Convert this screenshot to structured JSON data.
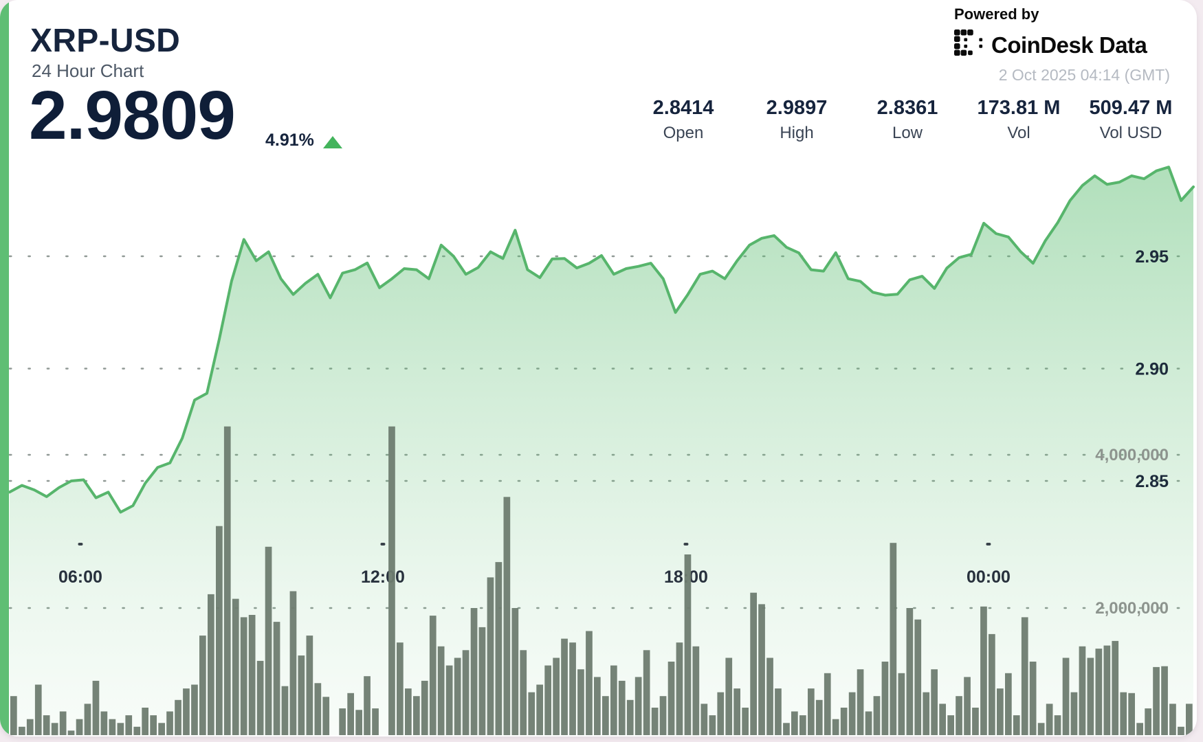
{
  "page": {
    "background": "#f3ebf0",
    "card_background": "#ffffff",
    "accent_color": "#5fbe74"
  },
  "header": {
    "symbol": "XRP-USD",
    "chart_label": "24 Hour Chart",
    "price": "2.9809",
    "change_pct": "4.91%",
    "change_direction": "up",
    "change_triangle_color": "#43b45c",
    "stats": [
      {
        "value": "2.8414",
        "label": "Open"
      },
      {
        "value": "2.9897",
        "label": "High"
      },
      {
        "value": "2.8361",
        "label": "Low"
      },
      {
        "value": "173.81 M",
        "label": "Vol"
      },
      {
        "value": "509.47 M",
        "label": "Vol USD"
      }
    ]
  },
  "attribution": {
    "powered_by": "Powered by",
    "brand": "CoinDesk Data",
    "timestamp": "2 Oct 2025 04:14 (GMT)"
  },
  "chart_data": {
    "type": "area",
    "title": "XRP-USD 24 Hour Chart",
    "subtitle_note": "price area chart with volume bars, dotted grid, legend on right",
    "price_line_color": "#57b56c",
    "area_fill_color": "#5fbe74",
    "volume_bar_color": "#6e7c70",
    "grid_dot_color": "#75807b",
    "x_ticks": [
      {
        "label": "06:00",
        "pos": 0.0598
      },
      {
        "label": "12:00",
        "pos": 0.3153
      },
      {
        "label": "18:00",
        "pos": 0.5714
      },
      {
        "label": "00:00",
        "pos": 0.8269
      }
    ],
    "price_axis": {
      "label_color": "#1d2b3b",
      "ylim": [
        2.83,
        3.0
      ],
      "gridlines": [
        {
          "label": "2.95",
          "value": 2.95
        },
        {
          "label": "2.90",
          "value": 2.9
        },
        {
          "label": "2.85",
          "value": 2.85
        }
      ]
    },
    "volume_axis": {
      "label_color": "#8d948e",
      "unit": "millions",
      "gridlines": [
        {
          "label": "4,000,000",
          "value": 4.0
        },
        {
          "label": "2,000,000",
          "value": 2.0
        }
      ]
    },
    "price_points": [
      2.845,
      2.848,
      2.846,
      2.843,
      2.847,
      2.85,
      2.8505,
      2.8425,
      2.845,
      2.8361,
      2.839,
      2.849,
      2.856,
      2.858,
      2.869,
      2.886,
      2.889,
      2.913,
      2.939,
      2.9575,
      2.948,
      2.952,
      2.94,
      2.933,
      2.938,
      2.942,
      2.9315,
      2.9425,
      2.944,
      2.947,
      2.936,
      2.94,
      2.9445,
      2.944,
      2.94,
      2.955,
      2.95,
      2.942,
      2.945,
      2.952,
      2.949,
      2.9616,
      2.944,
      2.9405,
      2.9488,
      2.949,
      2.9448,
      2.9469,
      2.9503,
      2.942,
      2.9445,
      2.9455,
      2.9469,
      2.94,
      2.925,
      2.933,
      2.942,
      2.9434,
      2.94,
      2.948,
      2.955,
      2.958,
      2.9592,
      2.954,
      2.9515,
      2.944,
      2.9434,
      2.9516,
      2.94,
      2.9388,
      2.934,
      2.9327,
      2.9331,
      2.9395,
      2.9411,
      2.9357,
      2.9447,
      2.9494,
      2.9509,
      2.9647,
      2.9601,
      2.9586,
      2.952,
      2.9469,
      2.957,
      2.965,
      2.9748,
      2.9815,
      2.9858,
      2.982,
      2.983,
      2.9858,
      2.9845,
      2.988,
      2.9897,
      2.9748,
      2.9809
    ],
    "volume_points_millions": [
      0.85,
      0.45,
      0.55,
      1.0,
      0.6,
      0.5,
      0.65,
      0.4,
      0.55,
      0.75,
      1.05,
      0.65,
      0.55,
      0.5,
      0.6,
      0.45,
      0.7,
      0.6,
      0.5,
      0.65,
      0.8,
      0.95,
      1.0,
      1.64,
      2.18,
      3.07,
      4.37,
      2.12,
      1.88,
      1.91,
      1.31,
      2.8,
      1.82,
      0.98,
      2.22,
      1.38,
      1.64,
      1.02,
      0.84,
      0.31,
      0.69,
      0.89,
      0.67,
      1.11,
      0.69,
      0.18,
      4.37,
      1.55,
      0.95,
      0.85,
      1.05,
      1.9,
      1.5,
      1.25,
      1.35,
      1.45,
      2.0,
      1.75,
      2.4,
      2.6,
      3.45,
      2.0,
      1.45,
      0.9,
      1.0,
      1.25,
      1.35,
      1.6,
      1.55,
      1.2,
      1.7,
      1.1,
      0.85,
      1.25,
      1.05,
      0.8,
      1.1,
      1.45,
      0.7,
      0.85,
      1.3,
      1.55,
      2.7,
      1.5,
      0.75,
      0.6,
      0.9,
      1.35,
      0.95,
      0.7,
      2.2,
      2.05,
      1.35,
      0.95,
      0.5,
      0.65,
      0.6,
      0.95,
      0.8,
      1.15,
      0.55,
      0.7,
      0.9,
      1.2,
      0.65,
      0.85,
      1.3,
      2.85,
      1.15,
      2.0,
      1.85,
      0.9,
      1.2,
      0.75,
      0.6,
      0.85,
      1.1,
      0.7,
      2.02,
      1.66,
      0.95,
      1.15,
      0.6,
      1.88,
      1.3,
      0.5,
      0.75,
      0.6,
      1.35,
      0.9,
      1.5,
      1.35,
      1.47,
      1.51,
      1.57,
      0.9,
      0.89,
      0.5,
      0.69,
      1.23,
      1.24,
      0.75,
      0.45,
      0.75
    ]
  }
}
